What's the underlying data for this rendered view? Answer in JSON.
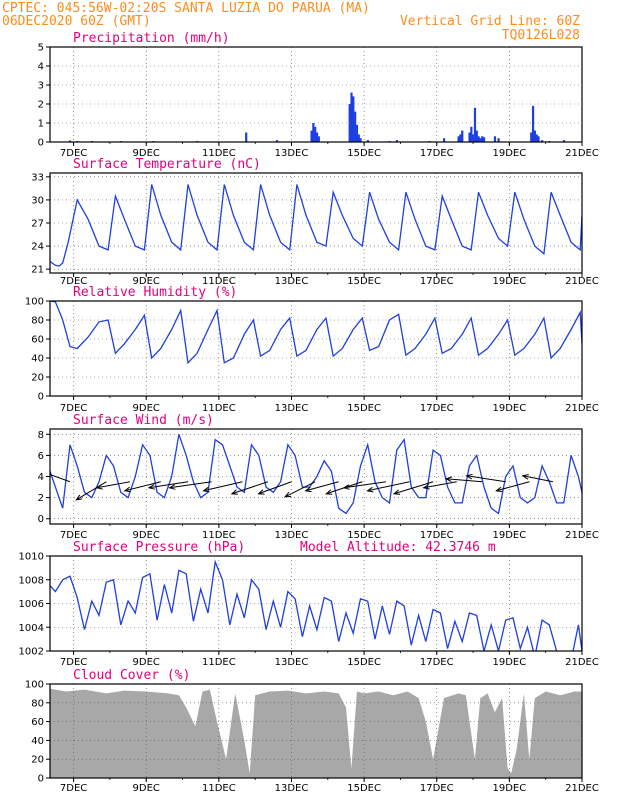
{
  "header": {
    "line1_left": "CPTEC:   045:56W-02:20S   SANTA LUZIA DO PARUA (MA)",
    "line2_left": "06DEC2020 60Z (GMT)",
    "line2_right": "Vertical Grid Line: 60Z",
    "line3_right": "TQ0126L028"
  },
  "x_axis": {
    "tick_labels": [
      "7DEC",
      "9DEC",
      "11DEC",
      "13DEC",
      "15DEC",
      "17DEC",
      "19DEC",
      "21DEC"
    ],
    "tick_days": [
      7,
      9,
      11,
      13,
      15,
      17,
      19,
      21
    ],
    "range_days": [
      6.35,
      21.0
    ]
  },
  "colors": {
    "line": "#1f3fe0",
    "bars": "#1f3fe0",
    "cloud": "#a8a8a8",
    "title": "#e6007e",
    "header": "#ff8c1a"
  },
  "chart_data": [
    {
      "type": "bar",
      "title": "Precipitation (mm/h)",
      "ylim": [
        0,
        5
      ],
      "yticks": [
        "0",
        "1",
        "2",
        "3",
        "4",
        "5"
      ],
      "x_days": [
        6.9,
        7.1,
        7.5,
        8.3,
        9.2,
        10.4,
        11.75,
        12.6,
        13.55,
        13.6,
        13.65,
        13.7,
        13.75,
        14.6,
        14.65,
        14.7,
        14.75,
        14.8,
        14.85,
        14.9,
        15.1,
        15.7,
        15.9,
        16.8,
        17.2,
        17.6,
        17.65,
        17.7,
        17.9,
        17.95,
        18.0,
        18.05,
        18.1,
        18.15,
        18.2,
        18.25,
        18.3,
        18.6,
        18.7,
        19.6,
        19.65,
        19.7,
        19.75,
        19.8,
        19.9,
        20.1,
        20.5
      ],
      "values": [
        0.08,
        0.05,
        0.05,
        0.05,
        0.05,
        0.05,
        0.5,
        0.1,
        0.6,
        1.0,
        0.8,
        0.5,
        0.3,
        2.0,
        2.6,
        2.4,
        1.6,
        0.9,
        0.4,
        0.2,
        0.1,
        0.05,
        0.1,
        0.05,
        0.2,
        0.3,
        0.4,
        0.6,
        0.5,
        0.8,
        0.4,
        1.8,
        0.6,
        0.3,
        0.2,
        0.3,
        0.25,
        0.3,
        0.2,
        0.5,
        1.9,
        0.6,
        0.4,
        0.3,
        0.1,
        0.05,
        0.1
      ],
      "grid": true
    },
    {
      "type": "line",
      "title": "Surface Temperature (nC)",
      "ylim": [
        20.5,
        33.5
      ],
      "yticks": [
        "21",
        "24",
        "27",
        "30",
        "33"
      ],
      "series": [
        {
          "x_days": [
            6.35,
            6.5,
            6.6,
            6.7,
            6.85,
            7.1,
            7.4,
            7.7,
            7.95,
            8.15,
            8.4,
            8.7,
            8.95,
            9.15,
            9.4,
            9.7,
            9.95,
            10.15,
            10.4,
            10.7,
            10.95,
            11.15,
            11.4,
            11.7,
            11.95,
            12.15,
            12.4,
            12.7,
            12.95,
            13.15,
            13.4,
            13.7,
            13.95,
            14.15,
            14.4,
            14.7,
            14.95,
            15.15,
            15.4,
            15.7,
            15.95,
            16.15,
            16.4,
            16.7,
            16.95,
            17.15,
            17.4,
            17.7,
            17.95,
            18.15,
            18.4,
            18.7,
            18.95,
            19.15,
            19.4,
            19.7,
            19.95,
            20.15,
            20.4,
            20.7,
            20.95,
            21.0
          ],
          "values": [
            22.0,
            21.5,
            21.4,
            21.8,
            24.5,
            30.0,
            27.5,
            24.0,
            23.5,
            30.5,
            27.5,
            24.0,
            23.5,
            32.0,
            28.0,
            24.5,
            23.5,
            32.0,
            28.0,
            24.5,
            23.5,
            32.0,
            28.0,
            24.5,
            23.5,
            32.0,
            28.0,
            24.5,
            23.5,
            32.0,
            28.0,
            24.5,
            24.0,
            31.0,
            28.0,
            25.0,
            24.0,
            31.0,
            27.5,
            24.5,
            23.5,
            31.0,
            27.5,
            24.0,
            23.5,
            30.5,
            27.5,
            24.0,
            23.5,
            31.0,
            28.0,
            25.0,
            24.0,
            31.0,
            27.5,
            24.0,
            23.0,
            31.0,
            28.0,
            24.5,
            23.5,
            28.0
          ]
        }
      ],
      "grid": true
    },
    {
      "type": "line",
      "title": "Relative Humidity (%)",
      "ylim": [
        0,
        100
      ],
      "yticks": [
        "0",
        "20",
        "40",
        "60",
        "80",
        "100"
      ],
      "series": [
        {
          "x_days": [
            6.35,
            6.5,
            6.7,
            6.9,
            7.1,
            7.4,
            7.7,
            7.95,
            8.15,
            8.4,
            8.7,
            8.95,
            9.15,
            9.4,
            9.7,
            9.95,
            10.15,
            10.4,
            10.7,
            10.95,
            11.15,
            11.4,
            11.7,
            11.95,
            12.15,
            12.4,
            12.7,
            12.95,
            13.15,
            13.4,
            13.7,
            13.95,
            14.15,
            14.4,
            14.7,
            14.95,
            15.15,
            15.4,
            15.7,
            15.95,
            16.15,
            16.4,
            16.7,
            16.95,
            17.15,
            17.4,
            17.7,
            17.95,
            18.15,
            18.4,
            18.7,
            18.95,
            19.15,
            19.4,
            19.7,
            19.95,
            20.15,
            20.4,
            20.7,
            20.95,
            21.0
          ],
          "values": [
            100,
            99,
            80,
            52,
            50,
            62,
            78,
            80,
            45,
            55,
            70,
            85,
            40,
            50,
            70,
            90,
            35,
            45,
            70,
            90,
            35,
            40,
            65,
            80,
            42,
            48,
            70,
            82,
            42,
            48,
            70,
            82,
            42,
            50,
            70,
            82,
            48,
            52,
            80,
            86,
            43,
            50,
            65,
            82,
            45,
            50,
            65,
            82,
            43,
            50,
            65,
            80,
            43,
            50,
            65,
            82,
            40,
            50,
            70,
            88,
            55
          ]
        }
      ],
      "grid": true
    },
    {
      "type": "line",
      "title": "Surface Wind (m/s)",
      "ylim": [
        -0.5,
        8.5
      ],
      "yticks": [
        "0",
        "2",
        "4",
        "6",
        "8"
      ],
      "series": [
        {
          "x_days": [
            6.35,
            6.5,
            6.7,
            6.9,
            7.1,
            7.3,
            7.5,
            7.7,
            7.9,
            8.1,
            8.3,
            8.5,
            8.7,
            8.9,
            9.1,
            9.3,
            9.5,
            9.7,
            9.9,
            10.1,
            10.3,
            10.5,
            10.7,
            10.9,
            11.1,
            11.3,
            11.5,
            11.7,
            11.9,
            12.1,
            12.3,
            12.5,
            12.7,
            12.9,
            13.1,
            13.3,
            13.5,
            13.7,
            13.9,
            14.1,
            14.3,
            14.5,
            14.7,
            14.9,
            15.1,
            15.3,
            15.5,
            15.7,
            15.9,
            16.1,
            16.3,
            16.5,
            16.7,
            16.9,
            17.1,
            17.3,
            17.5,
            17.7,
            17.9,
            18.1,
            18.3,
            18.5,
            18.7,
            18.9,
            19.1,
            19.3,
            19.5,
            19.7,
            19.9,
            20.1,
            20.3,
            20.5,
            20.7,
            20.9,
            21.0
          ],
          "values": [
            4.5,
            3.0,
            1.0,
            7.0,
            5.0,
            2.5,
            2.0,
            3.5,
            6.0,
            5.0,
            2.5,
            2.0,
            4.0,
            7.0,
            6.0,
            2.5,
            2.0,
            4.0,
            8.0,
            6.0,
            3.5,
            2.0,
            2.5,
            7.5,
            7.0,
            5.0,
            3.0,
            2.5,
            7.0,
            6.0,
            3.0,
            2.5,
            3.5,
            7.0,
            6.0,
            3.0,
            3.0,
            4.0,
            5.5,
            4.5,
            1.0,
            0.5,
            1.5,
            5.0,
            7.0,
            3.5,
            2.0,
            1.5,
            6.5,
            7.5,
            3.0,
            2.0,
            2.0,
            6.5,
            6.0,
            3.0,
            1.5,
            1.5,
            5.0,
            6.0,
            3.0,
            1.0,
            0.5,
            4.0,
            5.0,
            2.0,
            1.5,
            2.0,
            5.0,
            3.5,
            1.5,
            1.5,
            6.0,
            4.0,
            2.5
          ]
        }
      ],
      "grid": true,
      "wind_arrows": {
        "x_days": [
          6.35,
          6.9,
          7.9,
          8.55,
          9.4,
          10.15,
          10.8,
          11.65,
          12.35,
          13.0,
          13.65,
          14.3,
          14.95,
          15.6,
          16.25,
          16.9,
          17.55,
          18.25,
          18.9,
          19.55,
          20.2
        ],
        "u": [
          -0.6,
          -0.55,
          -0.5,
          -0.55,
          -0.6,
          -0.65,
          -0.7,
          -0.65,
          -0.6,
          -0.55,
          -0.5,
          -0.55,
          -0.6,
          -0.7,
          -0.7,
          -0.65,
          -0.55,
          -0.6,
          -0.65,
          -0.55,
          -0.5
        ],
        "v": [
          -0.15,
          0.2,
          -0.3,
          -0.1,
          -0.15,
          -0.1,
          -0.1,
          -0.15,
          -0.2,
          -0.2,
          -0.25,
          -0.15,
          -0.2,
          -0.1,
          -0.15,
          -0.2,
          -0.1,
          0.05,
          0.1,
          -0.15,
          0.1
        ]
      }
    },
    {
      "type": "line",
      "title": "Surface Pressure (hPa)",
      "annotation": "Model Altitude: 42.3746  m",
      "ylim": [
        1002,
        1010
      ],
      "yticks": [
        "1002",
        "1004",
        "1006",
        "1008",
        "1010"
      ],
      "series": [
        {
          "x_days": [
            6.35,
            6.5,
            6.7,
            6.9,
            7.1,
            7.3,
            7.5,
            7.7,
            7.9,
            8.1,
            8.3,
            8.5,
            8.7,
            8.9,
            9.1,
            9.3,
            9.5,
            9.7,
            9.9,
            10.1,
            10.3,
            10.5,
            10.7,
            10.9,
            11.1,
            11.3,
            11.5,
            11.7,
            11.9,
            12.1,
            12.3,
            12.5,
            12.7,
            12.9,
            13.1,
            13.3,
            13.5,
            13.7,
            13.9,
            14.1,
            14.3,
            14.5,
            14.7,
            14.9,
            15.1,
            15.3,
            15.5,
            15.7,
            15.9,
            16.1,
            16.3,
            16.5,
            16.7,
            16.9,
            17.1,
            17.3,
            17.5,
            17.7,
            17.9,
            18.1,
            18.3,
            18.5,
            18.7,
            18.9,
            19.1,
            19.3,
            19.5,
            19.7,
            19.9,
            20.1,
            20.3,
            20.5,
            20.7,
            20.9,
            21.0
          ],
          "values": [
            1007.5,
            1007.0,
            1008.0,
            1008.3,
            1006.5,
            1003.8,
            1006.2,
            1005.0,
            1007.8,
            1008.0,
            1004.2,
            1006.2,
            1005.2,
            1008.2,
            1008.5,
            1004.6,
            1007.6,
            1005.2,
            1008.8,
            1008.5,
            1004.5,
            1007.2,
            1005.2,
            1009.5,
            1008.0,
            1004.2,
            1006.8,
            1004.8,
            1008.0,
            1007.2,
            1003.8,
            1006.2,
            1004.0,
            1007.0,
            1006.4,
            1003.2,
            1005.8,
            1003.8,
            1006.5,
            1006.2,
            1002.8,
            1005.2,
            1003.5,
            1006.4,
            1006.2,
            1003.0,
            1005.8,
            1003.4,
            1006.2,
            1005.8,
            1002.5,
            1005.0,
            1002.8,
            1005.5,
            1005.2,
            1002.2,
            1004.5,
            1002.8,
            1005.2,
            1005.0,
            1002.0,
            1004.2,
            1002.0,
            1004.6,
            1004.8,
            1002.2,
            1004.0,
            1001.5,
            1004.6,
            1004.2,
            1002.0,
            1001.5,
            1001.2,
            1004.2,
            1002.0
          ]
        }
      ],
      "grid": true
    },
    {
      "type": "area",
      "title": "Cloud Cover (%)",
      "ylim": [
        0,
        100
      ],
      "yticks": [
        "0",
        "20",
        "40",
        "60",
        "80",
        "100"
      ],
      "series": [
        {
          "x_days": [
            6.35,
            6.8,
            7.3,
            7.9,
            8.4,
            9.0,
            9.6,
            9.9,
            10.1,
            10.35,
            10.55,
            10.75,
            10.95,
            11.2,
            11.45,
            11.7,
            11.85,
            12.0,
            12.4,
            12.9,
            13.4,
            13.9,
            14.3,
            14.5,
            14.65,
            14.8,
            15.0,
            15.4,
            15.8,
            16.2,
            16.5,
            16.7,
            16.9,
            17.2,
            17.6,
            17.8,
            18.05,
            18.2,
            18.4,
            18.6,
            18.8,
            18.95,
            19.05,
            19.2,
            19.4,
            19.55,
            19.7,
            20.0,
            20.4,
            20.8,
            21.0
          ],
          "values": [
            95,
            92,
            94,
            90,
            93,
            92,
            90,
            88,
            75,
            55,
            92,
            94,
            60,
            20,
            90,
            40,
            5,
            88,
            92,
            93,
            90,
            92,
            90,
            75,
            10,
            92,
            90,
            92,
            88,
            92,
            85,
            60,
            20,
            85,
            90,
            88,
            20,
            85,
            90,
            70,
            85,
            10,
            5,
            30,
            90,
            20,
            85,
            92,
            88,
            92,
            92
          ]
        }
      ],
      "grid": true
    }
  ]
}
